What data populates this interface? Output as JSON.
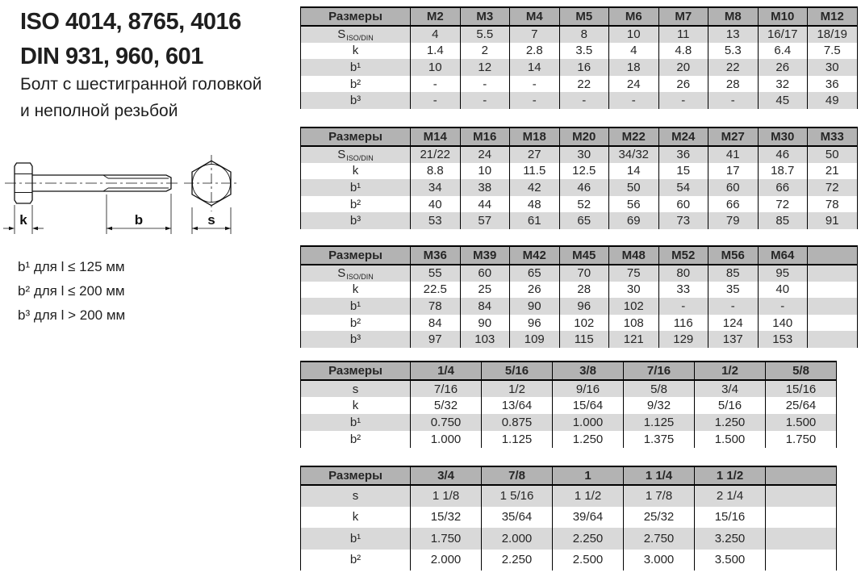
{
  "theme": {
    "header_bg": "#b3b3b3",
    "band_bg": "#d9d9d9"
  },
  "header": {
    "title_line1": "ISO 4014, 8765, 4016",
    "title_line2": "DIN 931, 960, 601",
    "subtitle_line1": "Болт с шестигранной головкой",
    "subtitle_line2": "и неполной резьбой"
  },
  "drawing": {
    "dim_k": "k",
    "dim_b": "b",
    "dim_s": "s"
  },
  "notes": [
    "b¹ для l ≤ 125 мм",
    "b² для l ≤ 200 мм",
    "b³ для l > 200 мм"
  ],
  "tables": [
    {
      "name": "metric-m2-m12",
      "columns": [
        "Размеры",
        "M2",
        "M3",
        "M4",
        "M5",
        "M6",
        "M7",
        "M8",
        "M10",
        "M12"
      ],
      "rows": [
        {
          "label": "S",
          "label_sub": "ISO/DIN",
          "values": [
            "4",
            "5.5",
            "7",
            "8",
            "10",
            "11",
            "13",
            "16/17",
            "18/19"
          ]
        },
        {
          "label": "k",
          "values": [
            "1.4",
            "2",
            "2.8",
            "3.5",
            "4",
            "4.8",
            "5.3",
            "6.4",
            "7.5"
          ]
        },
        {
          "label": "b¹",
          "values": [
            "10",
            "12",
            "14",
            "16",
            "18",
            "20",
            "22",
            "26",
            "30"
          ]
        },
        {
          "label": "b²",
          "values": [
            "-",
            "-",
            "-",
            "22",
            "24",
            "26",
            "28",
            "32",
            "36"
          ]
        },
        {
          "label": "b³",
          "values": [
            "-",
            "-",
            "-",
            "-",
            "-",
            "-",
            "-",
            "45",
            "49"
          ]
        }
      ]
    },
    {
      "name": "metric-m14-m33",
      "columns": [
        "Размеры",
        "M14",
        "M16",
        "M18",
        "M20",
        "M22",
        "M24",
        "M27",
        "M30",
        "M33"
      ],
      "rows": [
        {
          "label": "S",
          "label_sub": "ISO/DIN",
          "values": [
            "21/22",
            "24",
            "27",
            "30",
            "34/32",
            "36",
            "41",
            "46",
            "50"
          ]
        },
        {
          "label": "k",
          "values": [
            "8.8",
            "10",
            "11.5",
            "12.5",
            "14",
            "15",
            "17",
            "18.7",
            "21"
          ]
        },
        {
          "label": "b¹",
          "values": [
            "34",
            "38",
            "42",
            "46",
            "50",
            "54",
            "60",
            "66",
            "72"
          ]
        },
        {
          "label": "b²",
          "values": [
            "40",
            "44",
            "48",
            "52",
            "56",
            "60",
            "66",
            "72",
            "78"
          ]
        },
        {
          "label": "b³",
          "values": [
            "53",
            "57",
            "61",
            "65",
            "69",
            "73",
            "79",
            "85",
            "91"
          ]
        }
      ]
    },
    {
      "name": "metric-m36-m64",
      "columns": [
        "Размеры",
        "M36",
        "M39",
        "M42",
        "M45",
        "M48",
        "M52",
        "M56",
        "M64",
        ""
      ],
      "rows": [
        {
          "label": "S",
          "label_sub": "ISO/DIN",
          "values": [
            "55",
            "60",
            "65",
            "70",
            "75",
            "80",
            "85",
            "95",
            ""
          ]
        },
        {
          "label": "k",
          "values": [
            "22.5",
            "25",
            "26",
            "28",
            "30",
            "33",
            "35",
            "40",
            ""
          ]
        },
        {
          "label": "b¹",
          "values": [
            "78",
            "84",
            "90",
            "96",
            "102",
            "-",
            "-",
            "-",
            ""
          ]
        },
        {
          "label": "b²",
          "values": [
            "84",
            "90",
            "96",
            "102",
            "108",
            "116",
            "124",
            "140",
            ""
          ]
        },
        {
          "label": "b³",
          "values": [
            "97",
            "103",
            "109",
            "115",
            "121",
            "129",
            "137",
            "153",
            ""
          ]
        }
      ]
    },
    {
      "name": "imperial-quarter-to-fiveeighths",
      "columns": [
        "Размеры",
        "1/4",
        "5/16",
        "3/8",
        "7/16",
        "1/2",
        "5/8"
      ],
      "rows": [
        {
          "label": "s",
          "values": [
            "7/16",
            "1/2",
            "9/16",
            "5/8",
            "3/4",
            "15/16"
          ]
        },
        {
          "label": "k",
          "values": [
            "5/32",
            "13/64",
            "15/64",
            "9/32",
            "5/16",
            "25/64"
          ]
        },
        {
          "label": "b¹",
          "values": [
            "0.750",
            "0.875",
            "1.000",
            "1.125",
            "1.250",
            "1.500"
          ]
        },
        {
          "label": "b²",
          "values": [
            "1.000",
            "1.125",
            "1.250",
            "1.375",
            "1.500",
            "1.750"
          ]
        }
      ]
    },
    {
      "name": "imperial-threequarters-to-oneandhalf",
      "columns": [
        "Размеры",
        "3/4",
        "7/8",
        "1",
        "1 1/4",
        "1 1/2",
        ""
      ],
      "rows": [
        {
          "label": "s",
          "values": [
            "1 1/8",
            "1 5/16",
            "1 1/2",
            "1 7/8",
            "2 1/4",
            ""
          ]
        },
        {
          "label": "k",
          "values": [
            "15/32",
            "35/64",
            "39/64",
            "25/32",
            "15/16",
            ""
          ]
        },
        {
          "label": "b¹",
          "values": [
            "1.750",
            "2.000",
            "2.250",
            "2.750",
            "3.250",
            ""
          ]
        },
        {
          "label": "b²",
          "values": [
            "2.000",
            "2.250",
            "2.500",
            "3.000",
            "3.500",
            ""
          ]
        }
      ]
    }
  ]
}
